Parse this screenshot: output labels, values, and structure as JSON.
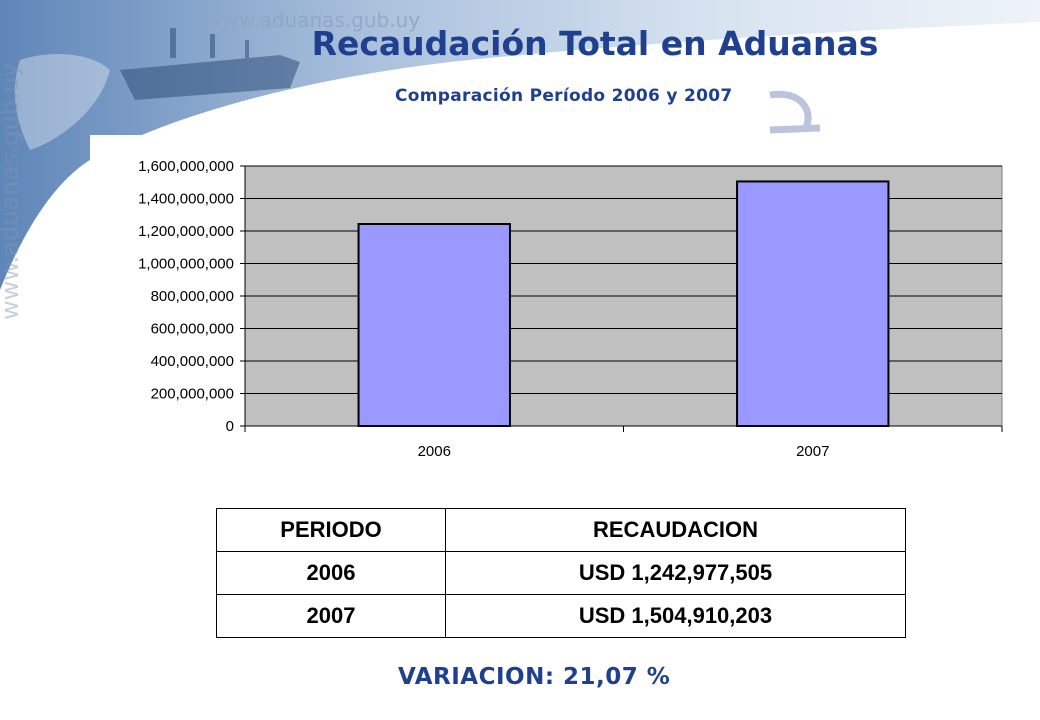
{
  "header": {
    "watermark_url": "www.aduanas.gub.uy",
    "title": "Recaudación Total en Aduanas",
    "subtitle": "Comparación Período 2006 y 2007"
  },
  "chart_data": {
    "type": "bar",
    "categories": [
      "2006",
      "2007"
    ],
    "values": [
      1242977505,
      1504910203
    ],
    "ylim": [
      0,
      1600000000
    ],
    "yticks": [
      0,
      200000000,
      400000000,
      600000000,
      800000000,
      1000000000,
      1200000000,
      1400000000,
      1600000000
    ],
    "ytick_labels": [
      "0",
      "200,000,000",
      "400,000,000",
      "600,000,000",
      "800,000,000",
      "1,000,000,000",
      "1,200,000,000",
      "1,400,000,000",
      "1,600,000,000"
    ],
    "grid": true,
    "legend": "none",
    "colors": {
      "bar": "#9999ff",
      "plot_bg": "#c0c0c0",
      "axis": "#000000"
    }
  },
  "table": {
    "headers": [
      "PERIODO",
      "RECAUDACION"
    ],
    "rows": [
      [
        "2006",
        "USD 1,242,977,505"
      ],
      [
        "2007",
        "USD 1,504,910,203"
      ]
    ]
  },
  "footer": {
    "variacion": "VARIACION: 21,07 %"
  },
  "theme": {
    "title_color": "#1f3f8f"
  }
}
